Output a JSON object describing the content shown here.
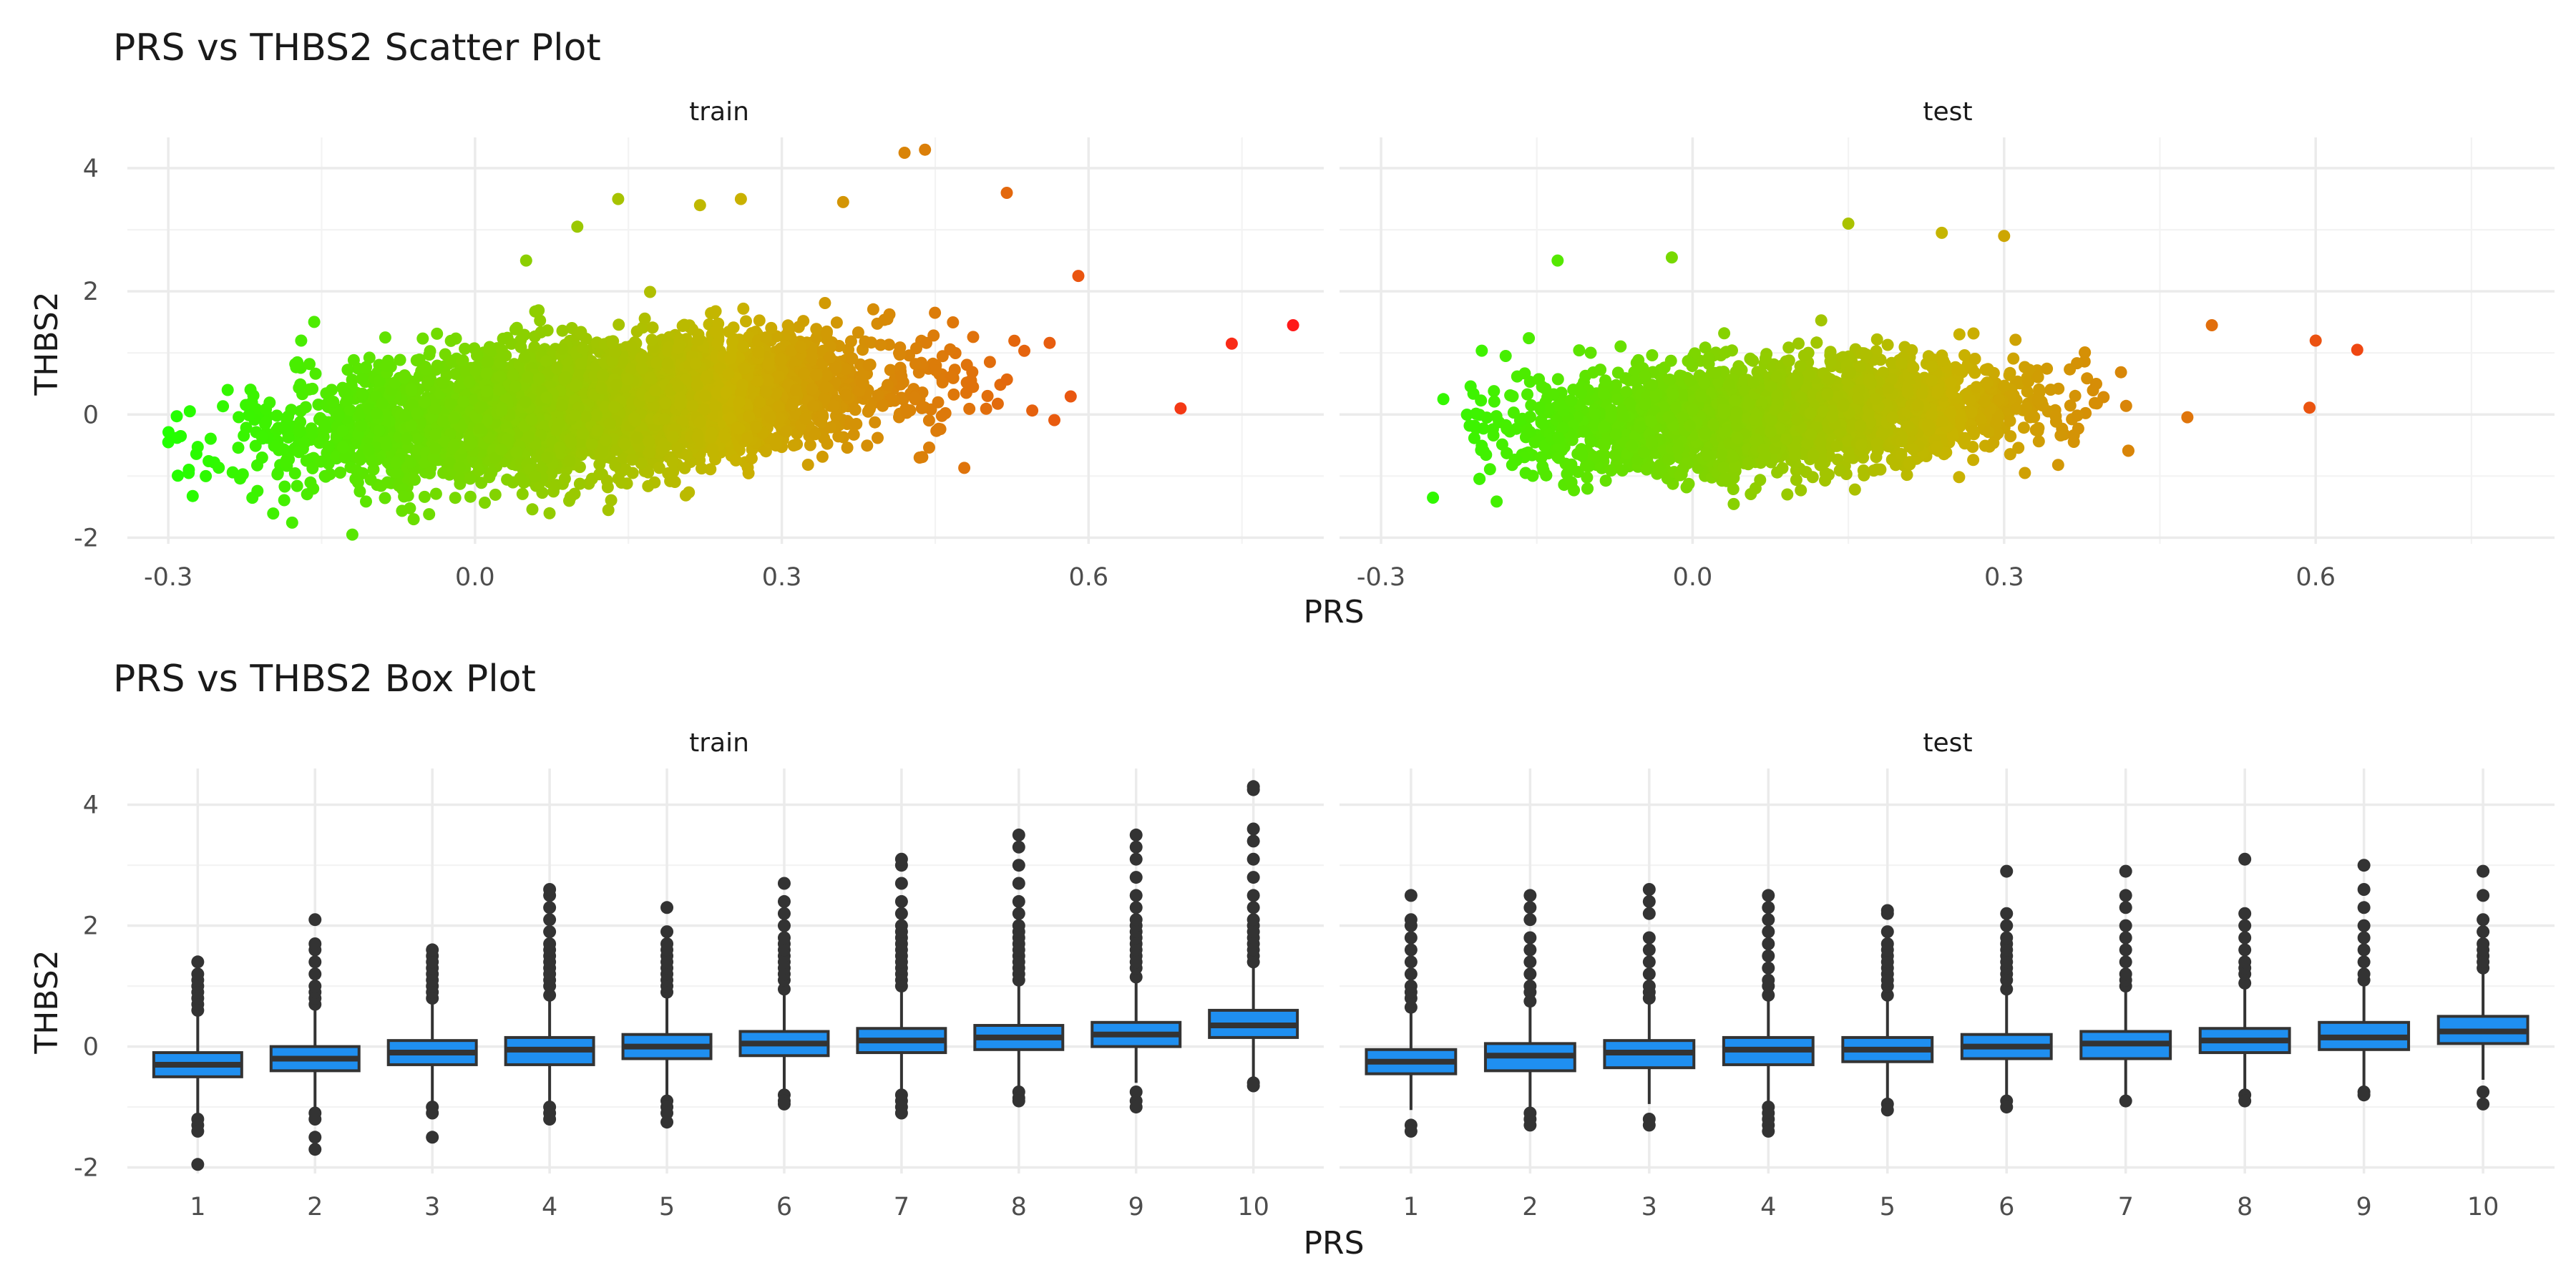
{
  "chart_data": [
    {
      "type": "scatter",
      "title": "PRS vs THBS2 Scatter Plot",
      "xlabel": "PRS",
      "ylabel": "THBS2",
      "xlim": [
        -0.34,
        0.83
      ],
      "ylim": [
        -2.1,
        4.5
      ],
      "x_ticks": [
        -0.3,
        0.0,
        0.3,
        0.6
      ],
      "x_tick_labels": [
        "-0.3",
        "0.0",
        "0.3",
        "0.6"
      ],
      "y_ticks": [
        -2,
        0,
        2,
        4
      ],
      "y_tick_labels": [
        "-2",
        "0",
        "2",
        "4"
      ],
      "grid": true,
      "color_scale": {
        "low": "#22ff00",
        "mid": "#c8b400",
        "high": "#ff1a1a",
        "domain": [
          -0.3,
          0.8
        ]
      },
      "panels": [
        {
          "label": "train",
          "cloud": {
            "n": 4200,
            "x_mean": 0.12,
            "x_sd": 0.14,
            "x_min": -0.3,
            "x_max": 0.68,
            "slope": 1.45,
            "intercept": -0.05,
            "resid_sd": 0.5
          },
          "highlight_points": [
            {
              "x": -0.3,
              "y": -0.45
            },
            {
              "x": -0.28,
              "y": -0.95
            },
            {
              "x": -0.17,
              "y": 1.2
            },
            {
              "x": -0.12,
              "y": -1.95
            },
            {
              "x": -0.06,
              "y": -1.7
            },
            {
              "x": 0.05,
              "y": 2.5
            },
            {
              "x": 0.1,
              "y": 3.05
            },
            {
              "x": 0.14,
              "y": 3.5
            },
            {
              "x": 0.22,
              "y": 3.4
            },
            {
              "x": 0.26,
              "y": 3.5
            },
            {
              "x": 0.36,
              "y": 3.45
            },
            {
              "x": 0.42,
              "y": 4.25
            },
            {
              "x": 0.44,
              "y": 4.3
            },
            {
              "x": 0.52,
              "y": 3.6
            },
            {
              "x": 0.59,
              "y": 2.25
            },
            {
              "x": 0.69,
              "y": 0.1
            },
            {
              "x": 0.74,
              "y": 1.15
            },
            {
              "x": 0.8,
              "y": 1.45
            }
          ]
        },
        {
          "label": "test",
          "cloud": {
            "n": 3000,
            "x_mean": 0.08,
            "x_sd": 0.12,
            "x_min": -0.22,
            "x_max": 0.64,
            "slope": 1.0,
            "intercept": -0.1,
            "resid_sd": 0.42
          },
          "highlight_points": [
            {
              "x": -0.25,
              "y": -1.35
            },
            {
              "x": -0.24,
              "y": 0.25
            },
            {
              "x": -0.18,
              "y": 0.95
            },
            {
              "x": -0.13,
              "y": 2.5
            },
            {
              "x": -0.02,
              "y": 2.55
            },
            {
              "x": 0.15,
              "y": 3.1
            },
            {
              "x": 0.24,
              "y": 2.95
            },
            {
              "x": 0.3,
              "y": 2.9
            },
            {
              "x": 0.32,
              "y": -0.95
            },
            {
              "x": 0.5,
              "y": 1.45
            },
            {
              "x": 0.6,
              "y": 1.2
            },
            {
              "x": 0.64,
              "y": 1.05
            }
          ]
        }
      ]
    },
    {
      "type": "box",
      "title": "PRS vs THBS2 Box Plot",
      "xlabel": "PRS",
      "ylabel": "THBS2",
      "categories": [
        "1",
        "2",
        "3",
        "4",
        "5",
        "6",
        "7",
        "8",
        "9",
        "10"
      ],
      "ylim": [
        -2.1,
        4.6
      ],
      "y_ticks": [
        -2,
        0,
        2,
        4
      ],
      "y_tick_labels": [
        "-2",
        "0",
        "2",
        "4"
      ],
      "box_fill": "#1f8ff0",
      "box_stroke": "#333333",
      "outlier_color": "#333333",
      "grid": true,
      "panels": [
        {
          "label": "train",
          "boxes": [
            {
              "q1": -0.5,
              "median": -0.3,
              "q3": -0.1,
              "whisker_low": -1.1,
              "whisker_high": 0.5,
              "outliers_low": [
                -1.2,
                -1.3,
                -1.4,
                -1.95
              ],
              "outliers_high": [
                0.6,
                0.7,
                0.8,
                0.9,
                1.0,
                1.1,
                1.2,
                1.4
              ]
            },
            {
              "q1": -0.4,
              "median": -0.2,
              "q3": 0.0,
              "whisker_low": -1.0,
              "whisker_high": 0.6,
              "outliers_low": [
                -1.1,
                -1.2,
                -1.5,
                -1.7
              ],
              "outliers_high": [
                0.7,
                0.8,
                0.9,
                1.0,
                1.2,
                1.4,
                1.6,
                1.7,
                2.1
              ]
            },
            {
              "q1": -0.3,
              "median": -0.1,
              "q3": 0.1,
              "whisker_low": -0.9,
              "whisker_high": 0.7,
              "outliers_low": [
                -1.0,
                -1.1,
                -1.5
              ],
              "outliers_high": [
                0.8,
                0.9,
                1.0,
                1.1,
                1.2,
                1.3,
                1.4,
                1.5,
                1.6
              ]
            },
            {
              "q1": -0.3,
              "median": -0.05,
              "q3": 0.15,
              "whisker_low": -0.95,
              "whisker_high": 0.75,
              "outliers_low": [
                -1.0,
                -1.1,
                -1.2
              ],
              "outliers_high": [
                0.85,
                1.0,
                1.1,
                1.2,
                1.3,
                1.4,
                1.5,
                1.6,
                1.7,
                1.9,
                2.1,
                2.3,
                2.5,
                2.6
              ]
            },
            {
              "q1": -0.2,
              "median": 0.0,
              "q3": 0.2,
              "whisker_low": -0.85,
              "whisker_high": 0.8,
              "outliers_low": [
                -0.9,
                -1.0,
                -1.1,
                -1.25
              ],
              "outliers_high": [
                0.9,
                1.0,
                1.1,
                1.2,
                1.3,
                1.4,
                1.5,
                1.6,
                1.7,
                1.9,
                2.3
              ]
            },
            {
              "q1": -0.15,
              "median": 0.05,
              "q3": 0.25,
              "whisker_low": -0.75,
              "whisker_high": 0.85,
              "outliers_low": [
                -0.8,
                -0.9,
                -0.95
              ],
              "outliers_high": [
                0.95,
                1.1,
                1.2,
                1.3,
                1.4,
                1.5,
                1.6,
                1.7,
                1.8,
                2.0,
                2.2,
                2.4,
                2.7
              ]
            },
            {
              "q1": -0.1,
              "median": 0.1,
              "q3": 0.3,
              "whisker_low": -0.7,
              "whisker_high": 0.9,
              "outliers_low": [
                -0.8,
                -0.9,
                -1.0,
                -1.1
              ],
              "outliers_high": [
                1.0,
                1.1,
                1.2,
                1.3,
                1.4,
                1.5,
                1.6,
                1.7,
                1.8,
                1.9,
                2.0,
                2.2,
                2.4,
                2.7,
                3.0,
                3.1
              ]
            },
            {
              "q1": -0.05,
              "median": 0.15,
              "q3": 0.35,
              "whisker_low": -0.65,
              "whisker_high": 1.0,
              "outliers_low": [
                -0.75,
                -0.85,
                -0.9
              ],
              "outliers_high": [
                1.1,
                1.2,
                1.3,
                1.4,
                1.5,
                1.6,
                1.7,
                1.8,
                1.9,
                2.0,
                2.2,
                2.4,
                2.7,
                3.0,
                3.3,
                3.5
              ]
            },
            {
              "q1": 0.0,
              "median": 0.2,
              "q3": 0.4,
              "whisker_low": -0.6,
              "whisker_high": 1.05,
              "outliers_low": [
                -0.75,
                -0.9,
                -1.0
              ],
              "outliers_high": [
                1.15,
                1.3,
                1.4,
                1.5,
                1.6,
                1.7,
                1.8,
                1.9,
                2.0,
                2.1,
                2.3,
                2.5,
                2.8,
                3.1,
                3.3,
                3.5
              ]
            },
            {
              "q1": 0.15,
              "median": 0.35,
              "q3": 0.6,
              "whisker_low": -0.5,
              "whisker_high": 1.3,
              "outliers_low": [
                -0.6,
                -0.65
              ],
              "outliers_high": [
                1.4,
                1.5,
                1.6,
                1.7,
                1.8,
                1.9,
                2.0,
                2.1,
                2.3,
                2.5,
                2.8,
                3.1,
                3.4,
                3.6,
                4.25,
                4.3
              ]
            }
          ]
        },
        {
          "label": "test",
          "boxes": [
            {
              "q1": -0.45,
              "median": -0.25,
              "q3": -0.05,
              "whisker_low": -1.05,
              "whisker_high": 0.55,
              "outliers_low": [
                -1.3,
                -1.4
              ],
              "outliers_high": [
                0.65,
                0.8,
                0.9,
                1.0,
                1.2,
                1.4,
                1.6,
                1.8,
                2.0,
                2.1,
                2.5
              ]
            },
            {
              "q1": -0.4,
              "median": -0.15,
              "q3": 0.05,
              "whisker_low": -1.0,
              "whisker_high": 0.65,
              "outliers_low": [
                -1.1,
                -1.2,
                -1.3
              ],
              "outliers_high": [
                0.75,
                0.9,
                1.0,
                1.2,
                1.4,
                1.6,
                1.8,
                2.1,
                2.3,
                2.5
              ]
            },
            {
              "q1": -0.35,
              "median": -0.1,
              "q3": 0.1,
              "whisker_low": -0.95,
              "whisker_high": 0.7,
              "outliers_low": [
                -1.2,
                -1.3
              ],
              "outliers_high": [
                0.8,
                0.9,
                1.0,
                1.2,
                1.4,
                1.6,
                1.8,
                2.2,
                2.4,
                2.6
              ]
            },
            {
              "q1": -0.3,
              "median": -0.05,
              "q3": 0.15,
              "whisker_low": -0.95,
              "whisker_high": 0.75,
              "outliers_low": [
                -1.0,
                -1.1,
                -1.2,
                -1.3,
                -1.4
              ],
              "outliers_high": [
                0.85,
                1.0,
                1.1,
                1.3,
                1.5,
                1.7,
                1.9,
                2.1,
                2.3,
                2.5
              ]
            },
            {
              "q1": -0.25,
              "median": -0.05,
              "q3": 0.15,
              "whisker_low": -0.85,
              "whisker_high": 0.75,
              "outliers_low": [
                -0.95,
                -1.05
              ],
              "outliers_high": [
                0.85,
                1.0,
                1.1,
                1.2,
                1.3,
                1.4,
                1.5,
                1.6,
                1.7,
                1.9,
                2.2,
                2.25
              ]
            },
            {
              "q1": -0.2,
              "median": 0.0,
              "q3": 0.2,
              "whisker_low": -0.8,
              "whisker_high": 0.85,
              "outliers_low": [
                -0.9,
                -1.0
              ],
              "outliers_high": [
                0.95,
                1.1,
                1.2,
                1.3,
                1.4,
                1.5,
                1.6,
                1.7,
                1.8,
                2.0,
                2.2,
                2.9
              ]
            },
            {
              "q1": -0.2,
              "median": 0.05,
              "q3": 0.25,
              "whisker_low": -0.8,
              "whisker_high": 0.9,
              "outliers_low": [
                -0.9
              ],
              "outliers_high": [
                1.0,
                1.1,
                1.2,
                1.4,
                1.6,
                1.8,
                2.0,
                2.3,
                2.5,
                2.9
              ]
            },
            {
              "q1": -0.1,
              "median": 0.1,
              "q3": 0.3,
              "whisker_low": -0.7,
              "whisker_high": 0.95,
              "outliers_low": [
                -0.8,
                -0.9
              ],
              "outliers_high": [
                1.05,
                1.2,
                1.3,
                1.4,
                1.6,
                1.8,
                2.0,
                2.2,
                3.1
              ]
            },
            {
              "q1": -0.05,
              "median": 0.15,
              "q3": 0.4,
              "whisker_low": -0.65,
              "whisker_high": 1.0,
              "outliers_low": [
                -0.75,
                -0.8
              ],
              "outliers_high": [
                1.1,
                1.2,
                1.4,
                1.6,
                1.8,
                2.0,
                2.3,
                2.6,
                3.0
              ]
            },
            {
              "q1": 0.05,
              "median": 0.25,
              "q3": 0.5,
              "whisker_low": -0.55,
              "whisker_high": 1.2,
              "outliers_low": [
                -0.75,
                -0.95
              ],
              "outliers_high": [
                1.3,
                1.4,
                1.5,
                1.6,
                1.7,
                1.9,
                2.1,
                2.5,
                2.9
              ]
            }
          ]
        }
      ]
    }
  ]
}
